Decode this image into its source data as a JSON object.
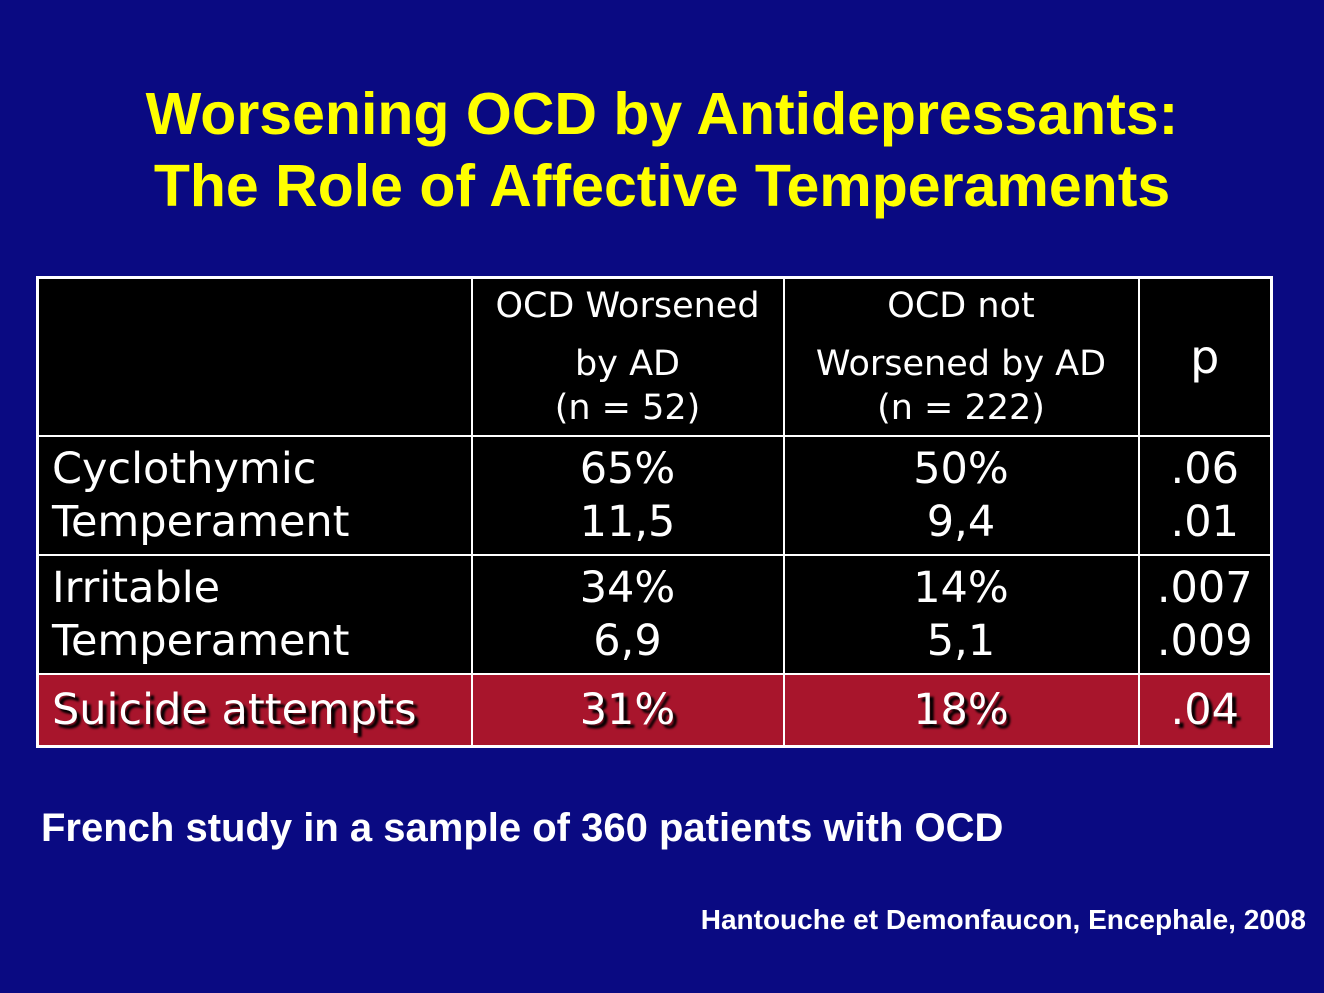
{
  "title": {
    "line1": "Worsening OCD by Antidepressants:",
    "line2": "The Role of Affective Temperaments"
  },
  "table": {
    "header": {
      "col2": [
        "OCD Worsened",
        "by AD",
        "(n = 52)"
      ],
      "col3": [
        "OCD not",
        "Worsened by AD",
        "(n = 222)"
      ],
      "col4": "p"
    },
    "rows": [
      {
        "label": [
          "Cyclothymic",
          "Temperament"
        ],
        "worsened": [
          "65%",
          "11,5"
        ],
        "not_worsened": [
          "50%",
          "9,4"
        ],
        "p": [
          ".06",
          ".01"
        ]
      },
      {
        "label": [
          "Irritable",
          "Temperament"
        ],
        "worsened": [
          "34%",
          "6,9"
        ],
        "not_worsened": [
          "14%",
          "5,1"
        ],
        "p": [
          ".007",
          ".009"
        ]
      }
    ],
    "highlight_row": {
      "label": "Suicide attempts",
      "worsened": "31%",
      "not_worsened": "18%",
      "p": ".04"
    }
  },
  "footer": "French study in a sample of 360 patients with OCD",
  "citation": "Hantouche et Demonfaucon, Encephale, 2008",
  "colors": {
    "background": "#0a0a82",
    "title": "#ffff00",
    "table_bg": "#000000",
    "highlight_row": "#a8152c",
    "text": "#ffffff"
  }
}
